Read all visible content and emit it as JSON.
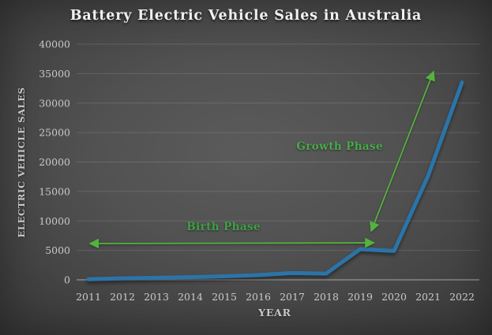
{
  "title": "Battery Electric Vehicle Sales in Australia",
  "chart_data": {
    "type": "line",
    "x": [
      2011,
      2012,
      2013,
      2014,
      2015,
      2016,
      2017,
      2018,
      2019,
      2020,
      2021,
      2022
    ],
    "series": [
      {
        "name": "Battery electric vehicle sales",
        "values": [
          100,
          250,
          350,
          450,
          600,
          800,
          1150,
          1050,
          5200,
          4900,
          17600,
          33500
        ]
      }
    ],
    "xlabel": "YEAR",
    "ylabel": "ELECTRIC VEHICLE SALES",
    "ylim": [
      0,
      40000
    ],
    "ytick_step": 5000,
    "grid": true,
    "legend": "none",
    "line_color": "#2b74a8",
    "annotations": [
      {
        "id": "birth-phase",
        "label": "Birth Phase",
        "type": "double-arrow",
        "from": {
          "year": 2011.05,
          "value": 6150
        },
        "to": {
          "year": 2019.4,
          "value": 6280
        },
        "label_pos": {
          "year": 2014.98,
          "value": 8950
        },
        "arrow_color": "#54b23d",
        "label_color": "#3da144"
      },
      {
        "id": "growth-phase",
        "label": "Growth Phase",
        "type": "double-arrow",
        "from": {
          "year": 2019.33,
          "value": 8300
        },
        "to": {
          "year": 2021.16,
          "value": 35300
        },
        "label_pos": {
          "year": 2018.4,
          "value": 22600
        },
        "arrow_color": "#54b23d",
        "label_color": "#47ab49"
      }
    ]
  }
}
